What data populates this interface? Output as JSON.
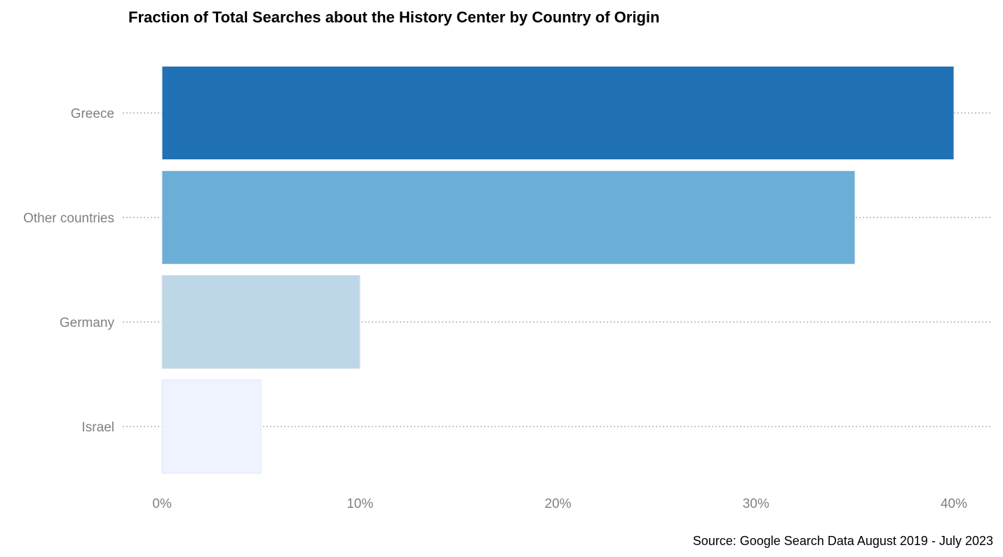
{
  "chart_data": {
    "type": "bar",
    "orientation": "horizontal",
    "title": "Fraction of Total Searches about the History Center by Country of Origin",
    "caption": "Source: Google Search Data August 2019 - July 2023",
    "xlabel": "",
    "ylabel": "",
    "categories": [
      "Greece",
      "Other countries",
      "Germany",
      "Israel"
    ],
    "values": [
      0.4,
      0.35,
      0.1,
      0.05
    ],
    "colors": [
      "#2171b5",
      "#6baed6",
      "#bdd7e7",
      "#eff3ff"
    ],
    "xlim": [
      0,
      0.4
    ],
    "x_ticks": [
      0,
      0.1,
      0.2,
      0.3,
      0.4
    ],
    "x_tick_labels": [
      "0%",
      "10%",
      "20%",
      "30%",
      "40%"
    ],
    "grid": "horizontal dotted",
    "legend": "none"
  }
}
